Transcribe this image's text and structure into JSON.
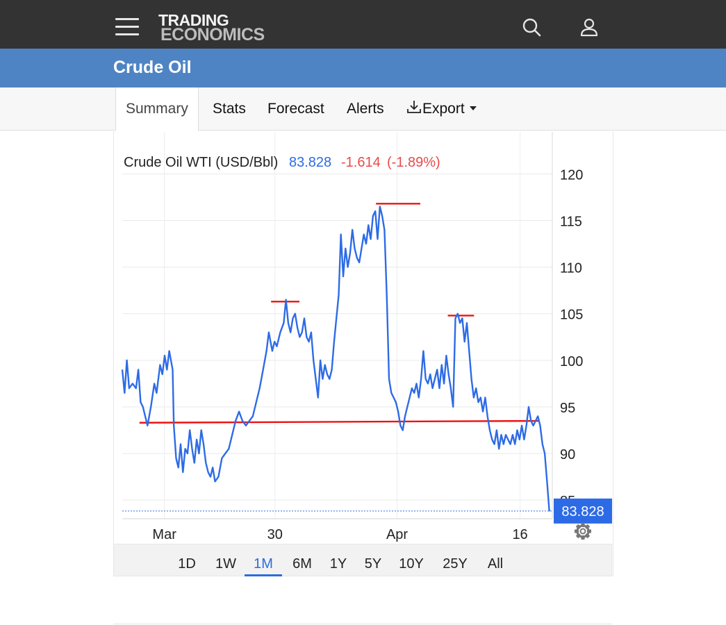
{
  "header": {
    "logo_line1": "TRADING",
    "logo_line2": "ECONOMICS",
    "menu_icon": "hamburger-menu-icon",
    "search_icon": "search-icon",
    "user_icon": "user-icon"
  },
  "page": {
    "title": "Crude Oil"
  },
  "tabs": [
    {
      "label": "Summary",
      "active": true
    },
    {
      "label": "Stats"
    },
    {
      "label": "Forecast"
    },
    {
      "label": "Alerts"
    },
    {
      "label": "Export",
      "icon": "download-icon",
      "dropdown": true
    }
  ],
  "colors": {
    "line": "#2d6be6",
    "negative": "#e84a4a",
    "trendline": "#ee1111",
    "header_bg": "#333333",
    "title_bg": "#4f84c4"
  },
  "chart_data": {
    "type": "line",
    "legend": {
      "name": "Crude Oil WTI (USD/Bbl)",
      "value": "83.828",
      "change": "-1.614",
      "change_pct": "(-1.89%)"
    },
    "y_ticks": [
      85,
      90,
      95,
      100,
      105,
      110,
      115,
      120
    ],
    "ylim": [
      83,
      124.5
    ],
    "y_axis_side": "right",
    "x_ticks": [
      {
        "label": "Mar",
        "t": 0.098
      },
      {
        "label": "30",
        "t": 0.355
      },
      {
        "label": "Apr",
        "t": 0.639
      },
      {
        "label": "16",
        "t": 0.925
      }
    ],
    "last_price_label": "83.828",
    "last_price": 83.828,
    "grid": true,
    "series": [
      {
        "points": [
          [
            0.0,
            99.0
          ],
          [
            0.004,
            96.5
          ],
          [
            0.008,
            100.0
          ],
          [
            0.012,
            97.0
          ],
          [
            0.018,
            97.5
          ],
          [
            0.024,
            97.0
          ],
          [
            0.028,
            99.0
          ],
          [
            0.032,
            95.5
          ],
          [
            0.036,
            95.0
          ],
          [
            0.04,
            94.0
          ],
          [
            0.044,
            93.0
          ],
          [
            0.05,
            95.0
          ],
          [
            0.056,
            97.5
          ],
          [
            0.06,
            96.5
          ],
          [
            0.066,
            99.5
          ],
          [
            0.07,
            98.5
          ],
          [
            0.074,
            100.5
          ],
          [
            0.078,
            99.0
          ],
          [
            0.082,
            101.0
          ],
          [
            0.088,
            99.0
          ],
          [
            0.09,
            93.0
          ],
          [
            0.094,
            89.5
          ],
          [
            0.098,
            88.5
          ],
          [
            0.102,
            91.0
          ],
          [
            0.106,
            88.0
          ],
          [
            0.11,
            90.5
          ],
          [
            0.114,
            90.0
          ],
          [
            0.118,
            92.5
          ],
          [
            0.122,
            90.5
          ],
          [
            0.126,
            89.0
          ],
          [
            0.13,
            91.5
          ],
          [
            0.134,
            90.0
          ],
          [
            0.138,
            92.5
          ],
          [
            0.142,
            91.0
          ],
          [
            0.146,
            89.0
          ],
          [
            0.15,
            88.0
          ],
          [
            0.154,
            87.5
          ],
          [
            0.158,
            88.5
          ],
          [
            0.162,
            87.0
          ],
          [
            0.168,
            87.5
          ],
          [
            0.174,
            89.5
          ],
          [
            0.18,
            90.0
          ],
          [
            0.186,
            90.5
          ],
          [
            0.192,
            92.0
          ],
          [
            0.198,
            93.5
          ],
          [
            0.204,
            94.5
          ],
          [
            0.21,
            93.5
          ],
          [
            0.216,
            93.0
          ],
          [
            0.222,
            93.5
          ],
          [
            0.228,
            94.0
          ],
          [
            0.234,
            95.5
          ],
          [
            0.24,
            97.0
          ],
          [
            0.246,
            99.0
          ],
          [
            0.252,
            101.0
          ],
          [
            0.256,
            103.0
          ],
          [
            0.262,
            101.0
          ],
          [
            0.266,
            102.0
          ],
          [
            0.27,
            101.5
          ],
          [
            0.276,
            103.0
          ],
          [
            0.282,
            104.0
          ],
          [
            0.286,
            106.5
          ],
          [
            0.29,
            104.0
          ],
          [
            0.294,
            103.0
          ],
          [
            0.298,
            104.5
          ],
          [
            0.302,
            105.0
          ],
          [
            0.306,
            103.5
          ],
          [
            0.31,
            102.5
          ],
          [
            0.314,
            103.0
          ],
          [
            0.318,
            104.5
          ],
          [
            0.322,
            102.5
          ],
          [
            0.326,
            102.0
          ],
          [
            0.33,
            103.0
          ],
          [
            0.334,
            100.0
          ],
          [
            0.338,
            98.0
          ],
          [
            0.342,
            96.0
          ],
          [
            0.346,
            100.0
          ],
          [
            0.35,
            98.0
          ],
          [
            0.354,
            99.5
          ],
          [
            0.358,
            98.5
          ],
          [
            0.362,
            98.0
          ],
          [
            0.366,
            99.0
          ],
          [
            0.37,
            102.0
          ],
          [
            0.374,
            104.5
          ],
          [
            0.378,
            107.0
          ],
          [
            0.382,
            113.5
          ],
          [
            0.386,
            109.0
          ],
          [
            0.39,
            112.0
          ],
          [
            0.394,
            110.0
          ],
          [
            0.398,
            111.5
          ],
          [
            0.402,
            114.0
          ],
          [
            0.406,
            112.0
          ],
          [
            0.41,
            111.0
          ],
          [
            0.414,
            110.5
          ],
          [
            0.418,
            112.0
          ],
          [
            0.422,
            113.5
          ],
          [
            0.426,
            112.5
          ],
          [
            0.43,
            114.5
          ],
          [
            0.434,
            113.0
          ],
          [
            0.438,
            115.5
          ],
          [
            0.442,
            116.0
          ],
          [
            0.446,
            113.0
          ],
          [
            0.45,
            116.5
          ],
          [
            0.454,
            115.5
          ],
          [
            0.458,
            114.0
          ],
          [
            0.462,
            107.0
          ],
          [
            0.466,
            98.0
          ],
          [
            0.47,
            96.5
          ],
          [
            0.474,
            96.0
          ],
          [
            0.478,
            95.5
          ],
          [
            0.482,
            94.5
          ],
          [
            0.486,
            93.0
          ],
          [
            0.49,
            92.5
          ],
          [
            0.494,
            94.0
          ],
          [
            0.498,
            95.0
          ],
          [
            0.502,
            96.0
          ],
          [
            0.506,
            97.0
          ],
          [
            0.51,
            96.5
          ],
          [
            0.514,
            97.5
          ],
          [
            0.518,
            96.0
          ],
          [
            0.522,
            98.0
          ],
          [
            0.526,
            101.0
          ],
          [
            0.53,
            98.0
          ],
          [
            0.534,
            97.5
          ],
          [
            0.538,
            98.5
          ],
          [
            0.542,
            97.0
          ],
          [
            0.546,
            98.0
          ],
          [
            0.55,
            99.0
          ],
          [
            0.554,
            97.0
          ],
          [
            0.558,
            99.5
          ],
          [
            0.562,
            97.5
          ],
          [
            0.566,
            100.5
          ],
          [
            0.57,
            98.5
          ],
          [
            0.574,
            97.0
          ],
          [
            0.578,
            95.0
          ],
          [
            0.582,
            104.5
          ],
          [
            0.586,
            105.0
          ],
          [
            0.59,
            104.0
          ],
          [
            0.594,
            104.5
          ],
          [
            0.598,
            102.0
          ],
          [
            0.602,
            104.0
          ],
          [
            0.606,
            101.0
          ],
          [
            0.61,
            98.0
          ],
          [
            0.614,
            96.0
          ],
          [
            0.618,
            97.0
          ],
          [
            0.622,
            95.5
          ],
          [
            0.626,
            96.0
          ],
          [
            0.63,
            94.5
          ],
          [
            0.634,
            96.0
          ],
          [
            0.638,
            94.0
          ],
          [
            0.642,
            92.5
          ],
          [
            0.646,
            91.5
          ],
          [
            0.65,
            91.0
          ],
          [
            0.654,
            92.5
          ],
          [
            0.658,
            90.5
          ],
          [
            0.662,
            92.0
          ],
          [
            0.666,
            91.0
          ],
          [
            0.67,
            92.0
          ],
          [
            0.674,
            91.5
          ],
          [
            0.678,
            91.0
          ],
          [
            0.682,
            92.0
          ],
          [
            0.686,
            91.0
          ],
          [
            0.69,
            92.5
          ],
          [
            0.694,
            91.5
          ],
          [
            0.698,
            93.0
          ],
          [
            0.702,
            91.5
          ],
          [
            0.706,
            93.0
          ],
          [
            0.71,
            95.0
          ],
          [
            0.714,
            93.5
          ],
          [
            0.718,
            93.0
          ],
          [
            0.722,
            93.5
          ],
          [
            0.726,
            94.0
          ],
          [
            0.73,
            93.0
          ],
          [
            0.734,
            91.0
          ],
          [
            0.738,
            90.0
          ],
          [
            0.742,
            87.0
          ],
          [
            0.746,
            83.8
          ]
        ]
      }
    ],
    "annotations": {
      "support_line": {
        "x": [
          0.04,
          0.97
        ],
        "y": [
          93.3,
          93.5
        ]
      },
      "peak_markers": [
        {
          "x": [
            0.346,
            0.412
          ],
          "y": 106.3
        },
        {
          "x": [
            0.59,
            0.693
          ],
          "y": 116.8
        },
        {
          "x": [
            0.757,
            0.818
          ],
          "y": 104.8
        }
      ]
    }
  },
  "range_buttons": [
    {
      "label": "1D"
    },
    {
      "label": "1W"
    },
    {
      "label": "1M",
      "active": true
    },
    {
      "label": "6M"
    },
    {
      "label": "1Y"
    },
    {
      "label": "5Y"
    },
    {
      "label": "10Y"
    },
    {
      "label": "25Y"
    },
    {
      "label": "All"
    }
  ],
  "settings_icon": "gear-icon"
}
